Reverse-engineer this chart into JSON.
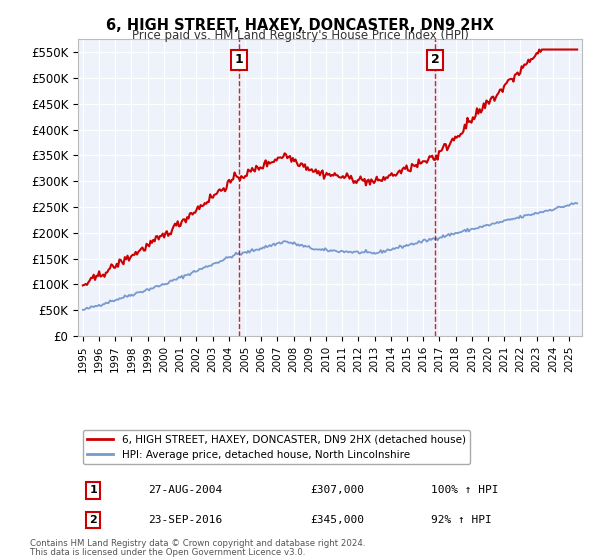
{
  "title": "6, HIGH STREET, HAXEY, DONCASTER, DN9 2HX",
  "subtitle": "Price paid vs. HM Land Registry's House Price Index (HPI)",
  "ylim": [
    0,
    575000
  ],
  "xlim_start": 1994.7,
  "xlim_end": 2025.8,
  "sale1_x": 2004.65,
  "sale1_y": 307000,
  "sale1_label": "1",
  "sale1_date": "27-AUG-2004",
  "sale1_price": "£307,000",
  "sale1_hpi": "100% ↑ HPI",
  "sale2_x": 2016.73,
  "sale2_y": 345000,
  "sale2_label": "2",
  "sale2_date": "23-SEP-2016",
  "sale2_price": "£345,000",
  "sale2_hpi": "92% ↑ HPI",
  "legend_line1": "6, HIGH STREET, HAXEY, DONCASTER, DN9 2HX (detached house)",
  "legend_line2": "HPI: Average price, detached house, North Lincolnshire",
  "footer1": "Contains HM Land Registry data © Crown copyright and database right 2024.",
  "footer2": "This data is licensed under the Open Government Licence v3.0.",
  "red_color": "#cc0000",
  "blue_color": "#7799cc",
  "plot_bg": "#eef2fb"
}
